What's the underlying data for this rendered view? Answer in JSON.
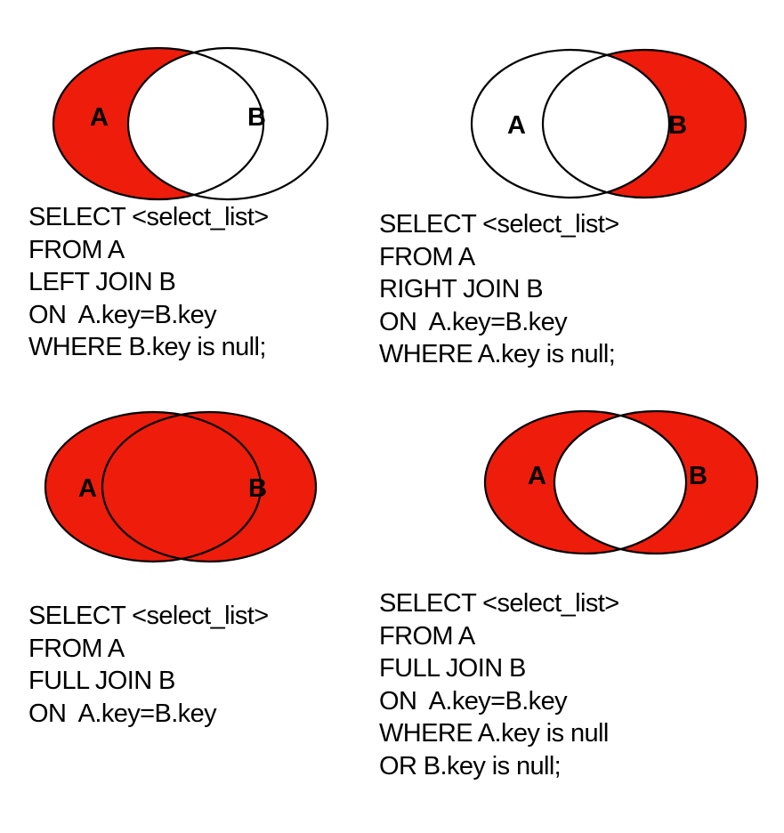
{
  "colors": {
    "fill": "#ee1c0b",
    "stroke": "#000000",
    "background": "#ffffff"
  },
  "diagrams": [
    {
      "label_a": "A",
      "label_b": "B",
      "highlight": "left-only",
      "sql": [
        "SELECT <select_list>",
        "FROM A",
        "LEFT JOIN B",
        "ON  A.key=B.key",
        "WHERE B.key is null;"
      ]
    },
    {
      "label_a": "A",
      "label_b": "B",
      "highlight": "right-only",
      "sql": [
        "SELECT <select_list>",
        "FROM A",
        "RIGHT JOIN B",
        "ON  A.key=B.key",
        "WHERE A.key is null;"
      ]
    },
    {
      "label_a": "A",
      "label_b": "B",
      "highlight": "all",
      "sql": [
        "SELECT <select_list>",
        "FROM A",
        "FULL JOIN B",
        "ON  A.key=B.key"
      ]
    },
    {
      "label_a": "A",
      "label_b": "B",
      "highlight": "exclusive",
      "sql": [
        "SELECT <select_list>",
        "FROM A",
        "FULL JOIN B",
        "ON  A.key=B.key",
        "WHERE A.key is null",
        "OR B.key is null;"
      ]
    }
  ]
}
